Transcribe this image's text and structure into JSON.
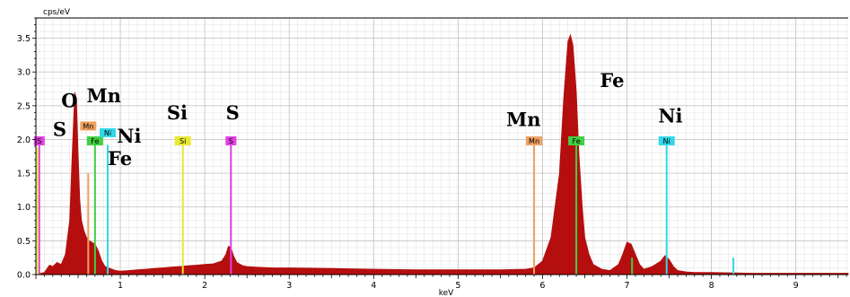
{
  "chart_data": {
    "type": "area",
    "title": "",
    "ylabel": "cps/eV",
    "xlabel": "keV",
    "xlim": [
      0,
      9.62
    ],
    "ylim": [
      0,
      3.8
    ],
    "x_ticks": [
      1,
      2,
      3,
      4,
      5,
      6,
      7,
      8,
      9
    ],
    "x_tick_labels": [
      "1",
      "2",
      "3",
      "4",
      "5",
      "6",
      "7",
      "8",
      "9"
    ],
    "y_ticks": [
      0.0,
      0.5,
      1.0,
      1.5,
      2.0,
      2.5,
      3.0,
      3.5
    ],
    "y_tick_labels": [
      "0.0",
      "0.5",
      "1.0",
      "1.5",
      "2.0",
      "2.5",
      "3.0",
      "3.5"
    ],
    "grid": true,
    "colors": {
      "spectrum": "#b50e0e",
      "S": "#e040e0",
      "Si": "#e8e830",
      "Fe": "#40d040",
      "Mn": "#f0a060",
      "Ni": "#30d8e8"
    },
    "series": [
      {
        "x": [
          0.0,
          0.1,
          0.16,
          0.2,
          0.25,
          0.3,
          0.35,
          0.4,
          0.43,
          0.46,
          0.48,
          0.5,
          0.52,
          0.54,
          0.57,
          0.6,
          0.63,
          0.66,
          0.7,
          0.74,
          0.78,
          0.82,
          0.86,
          0.9,
          0.95,
          1.0,
          1.1,
          1.2,
          1.3,
          1.4,
          1.5,
          1.6,
          1.7,
          1.8,
          1.9,
          2.0,
          2.1,
          2.2,
          2.25,
          2.28,
          2.31,
          2.34,
          2.38,
          2.45,
          2.5,
          2.6,
          2.8,
          3.0,
          3.5,
          4.0,
          4.5,
          5.0,
          5.5,
          5.8,
          5.9,
          6.0,
          6.1,
          6.2,
          6.25,
          6.3,
          6.33,
          6.36,
          6.4,
          6.43,
          6.47,
          6.5,
          6.55,
          6.6,
          6.7,
          6.8,
          6.9,
          6.95,
          7.0,
          7.05,
          7.1,
          7.15,
          7.2,
          7.3,
          7.4,
          7.45,
          7.5,
          7.55,
          7.6,
          7.7,
          7.8,
          8.0,
          8.5,
          9.0,
          9.62
        ],
        "y": [
          0.0,
          0.03,
          0.14,
          0.12,
          0.18,
          0.15,
          0.3,
          0.8,
          1.8,
          2.7,
          2.6,
          1.8,
          1.1,
          0.8,
          0.65,
          0.55,
          0.5,
          0.48,
          0.45,
          0.35,
          0.2,
          0.12,
          0.1,
          0.08,
          0.06,
          0.05,
          0.06,
          0.07,
          0.08,
          0.09,
          0.1,
          0.11,
          0.12,
          0.13,
          0.14,
          0.15,
          0.16,
          0.2,
          0.3,
          0.42,
          0.4,
          0.28,
          0.18,
          0.13,
          0.12,
          0.11,
          0.1,
          0.1,
          0.09,
          0.08,
          0.07,
          0.07,
          0.07,
          0.08,
          0.1,
          0.2,
          0.55,
          1.5,
          2.6,
          3.45,
          3.55,
          3.4,
          2.7,
          1.8,
          1.0,
          0.55,
          0.3,
          0.15,
          0.08,
          0.06,
          0.15,
          0.3,
          0.48,
          0.45,
          0.3,
          0.15,
          0.08,
          0.12,
          0.2,
          0.28,
          0.22,
          0.12,
          0.06,
          0.04,
          0.03,
          0.03,
          0.02,
          0.02,
          0.02
        ]
      }
    ],
    "element_lines": [
      {
        "element": "S",
        "x": 0.04,
        "height": 1.92,
        "tag": "S",
        "tag_y": 1.98
      },
      {
        "element": "Si",
        "x": 0.02,
        "height": 1.88,
        "tag": "",
        "tag_y": 0
      },
      {
        "element": "Mn",
        "x": 0.62,
        "height": 1.5,
        "tag": "Mn",
        "tag_y": 2.2
      },
      {
        "element": "Fe",
        "x": 0.7,
        "height": 1.94,
        "tag": "Fe",
        "tag_y": 1.98
      },
      {
        "element": "Ni",
        "x": 0.85,
        "height": 1.92,
        "tag": "Ni",
        "tag_y": 2.1
      },
      {
        "element": "Si",
        "x": 1.74,
        "height": 1.92,
        "tag": "Si",
        "tag_y": 1.98
      },
      {
        "element": "S",
        "x": 2.31,
        "height": 1.92,
        "tag": "S",
        "tag_y": 1.98
      },
      {
        "element": "Mn",
        "x": 5.9,
        "height": 1.92,
        "tag": "Mn",
        "tag_y": 1.98
      },
      {
        "element": "Fe",
        "x": 6.4,
        "height": 1.92,
        "tag": "Fe",
        "tag_y": 1.98
      },
      {
        "element": "Fe",
        "x": 7.06,
        "height": 0.25,
        "tag": "",
        "tag_y": 0
      },
      {
        "element": "Ni",
        "x": 7.47,
        "height": 1.92,
        "tag": "Ni",
        "tag_y": 1.98
      },
      {
        "element": "Ni",
        "x": 8.26,
        "height": 0.25,
        "tag": "",
        "tag_y": 0
      }
    ],
    "annotations": [
      {
        "text": "O",
        "x": 0.3,
        "y": 2.48
      },
      {
        "text": "Mn",
        "x": 0.6,
        "y": 2.55
      },
      {
        "text": "S",
        "x": 0.2,
        "y": 2.05
      },
      {
        "text": "Ni",
        "x": 0.96,
        "y": 1.95
      },
      {
        "text": "Fe",
        "x": 0.85,
        "y": 1.62
      },
      {
        "text": "Si",
        "x": 1.55,
        "y": 2.3
      },
      {
        "text": "S",
        "x": 2.25,
        "y": 2.3
      },
      {
        "text": "Mn",
        "x": 5.57,
        "y": 2.2
      },
      {
        "text": "Fe",
        "x": 6.68,
        "y": 2.78
      },
      {
        "text": "Ni",
        "x": 7.37,
        "y": 2.25
      }
    ]
  }
}
